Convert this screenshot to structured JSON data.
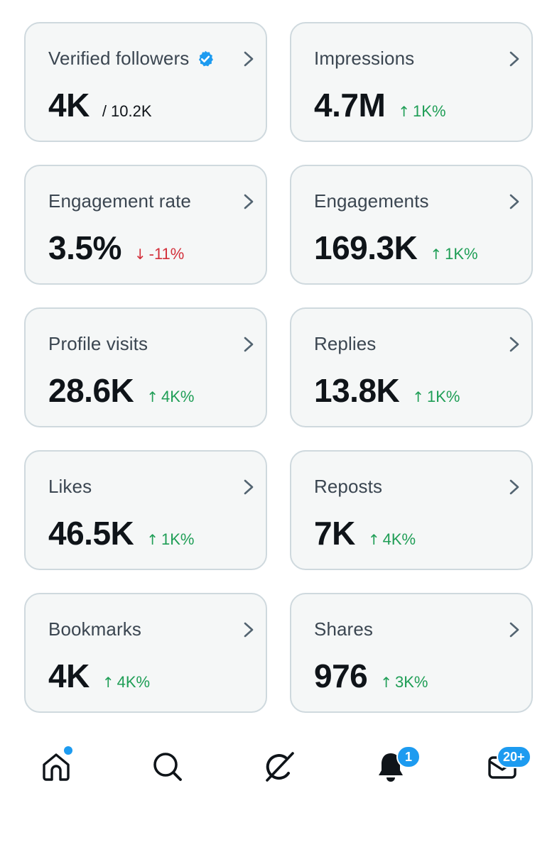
{
  "cards": [
    {
      "title": "Verified followers",
      "value": "4K",
      "sub": "/ 10.2K",
      "verified": true
    },
    {
      "title": "Impressions",
      "value": "4.7M",
      "delta": "1K%",
      "direction": "up"
    },
    {
      "title": "Engagement rate",
      "value": "3.5%",
      "delta": "-11%",
      "direction": "down"
    },
    {
      "title": "Engagements",
      "value": "169.3K",
      "delta": "1K%",
      "direction": "up"
    },
    {
      "title": "Profile visits",
      "value": "28.6K",
      "delta": "4K%",
      "direction": "up"
    },
    {
      "title": "Replies",
      "value": "13.8K",
      "delta": "1K%",
      "direction": "up"
    },
    {
      "title": "Likes",
      "value": "46.5K",
      "delta": "1K%",
      "direction": "up"
    },
    {
      "title": "Reposts",
      "value": "7K",
      "delta": "4K%",
      "direction": "up"
    },
    {
      "title": "Bookmarks",
      "value": "4K",
      "delta": "4K%",
      "direction": "up"
    },
    {
      "title": "Shares",
      "value": "976",
      "delta": "3K%",
      "direction": "up"
    }
  ],
  "arrows": {
    "up": "↑",
    "down": "↓"
  },
  "nav": {
    "home_icon": "home-icon",
    "search_icon": "search-icon",
    "grok_icon": "grok-icon",
    "notifications_icon": "bell-icon",
    "notifications_badge": "1",
    "messages_icon": "mail-icon",
    "messages_badge": "20+"
  },
  "colors": {
    "accent": "#1d9bf0",
    "up": "#1f9e56",
    "down": "#d3303b",
    "card_bg": "#f5f7f7",
    "card_border": "#cfd9de"
  }
}
